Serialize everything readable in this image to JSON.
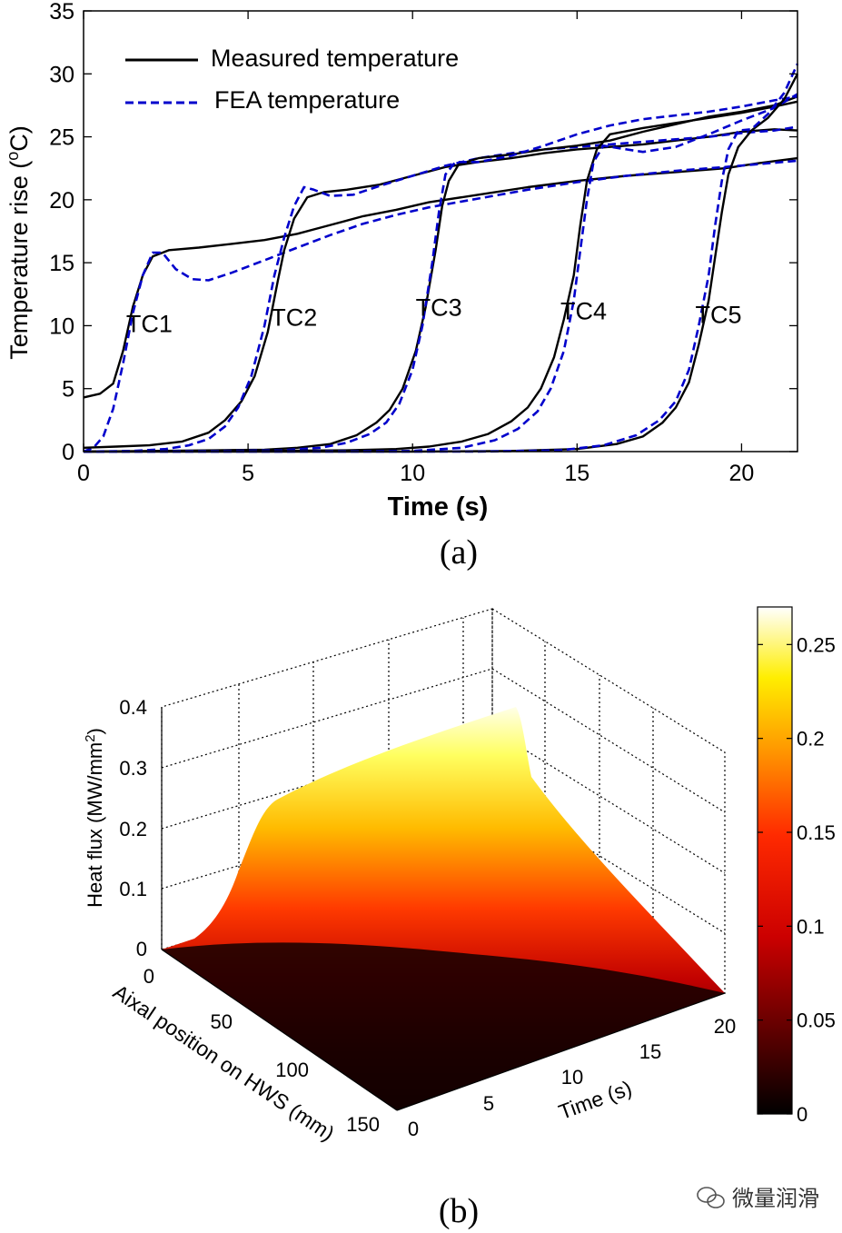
{
  "chart_data": [
    {
      "type": "line",
      "panel_label": "(a)",
      "xlabel": "Time (s)",
      "ylabel_main": "Temperature rise (",
      "ylabel_sup": "o",
      "ylabel_end": "C)",
      "xlim": [
        0,
        21.7
      ],
      "ylim": [
        0,
        35
      ],
      "xticks": [
        0,
        5,
        10,
        15,
        20
      ],
      "yticks": [
        0,
        5,
        10,
        15,
        20,
        25,
        30,
        35
      ],
      "legend": {
        "position": "top-left",
        "entries": [
          {
            "label": "Measured temperature",
            "color": "#000000",
            "style": "solid"
          },
          {
            "label": "FEA temperature",
            "color": "#0000cc",
            "style": "dashed"
          }
        ]
      },
      "annotations": [
        {
          "text": "TC1",
          "x": 2.0,
          "y": 9.5
        },
        {
          "text": "TC2",
          "x": 6.4,
          "y": 10.0
        },
        {
          "text": "TC3",
          "x": 10.8,
          "y": 10.8
        },
        {
          "text": "TC4",
          "x": 15.2,
          "y": 10.5
        },
        {
          "text": "TC5",
          "x": 19.3,
          "y": 10.2
        }
      ],
      "series": [
        {
          "label": "TC1",
          "kind": "measured",
          "points": [
            [
              0,
              4.3
            ],
            [
              0.5,
              4.6
            ],
            [
              0.9,
              5.4
            ],
            [
              1.2,
              8
            ],
            [
              1.5,
              11.5
            ],
            [
              1.8,
              14
            ],
            [
              2.1,
              15.5
            ],
            [
              2.6,
              16
            ],
            [
              3.5,
              16.2
            ],
            [
              4.5,
              16.5
            ],
            [
              5.5,
              16.8
            ],
            [
              6.5,
              17.3
            ],
            [
              7.5,
              18
            ],
            [
              8.5,
              18.7
            ],
            [
              9.5,
              19.2
            ],
            [
              10.5,
              19.8
            ],
            [
              12,
              20.4
            ],
            [
              13.5,
              21
            ],
            [
              15,
              21.5
            ],
            [
              16.5,
              21.9
            ],
            [
              18,
              22.2
            ],
            [
              19.5,
              22.5
            ],
            [
              20.5,
              22.9
            ],
            [
              21.7,
              23.3
            ]
          ]
        },
        {
          "label": "TC1",
          "kind": "fea",
          "points": [
            [
              0,
              0
            ],
            [
              0.3,
              0.3
            ],
            [
              0.6,
              1.2
            ],
            [
              0.9,
              3.4
            ],
            [
              1.2,
              7
            ],
            [
              1.5,
              11
            ],
            [
              1.8,
              14
            ],
            [
              2.1,
              15.8
            ],
            [
              2.4,
              15.8
            ],
            [
              2.8,
              14.5
            ],
            [
              3.3,
              13.7
            ],
            [
              3.8,
              13.6
            ],
            [
              4.5,
              14.2
            ],
            [
              5.5,
              15.2
            ],
            [
              6.5,
              16.2
            ],
            [
              7.5,
              17.2
            ],
            [
              8.5,
              18.1
            ],
            [
              9.5,
              18.8
            ],
            [
              10.5,
              19.4
            ],
            [
              12,
              20.1
            ],
            [
              13.5,
              20.8
            ],
            [
              15,
              21.4
            ],
            [
              16.5,
              21.9
            ],
            [
              18,
              22.3
            ],
            [
              19.5,
              22.6
            ],
            [
              21.7,
              23.1
            ]
          ]
        },
        {
          "label": "TC2",
          "kind": "measured",
          "points": [
            [
              0,
              0.3
            ],
            [
              1,
              0.4
            ],
            [
              2,
              0.5
            ],
            [
              3,
              0.8
            ],
            [
              3.8,
              1.5
            ],
            [
              4.3,
              2.5
            ],
            [
              4.8,
              4
            ],
            [
              5.2,
              6
            ],
            [
              5.6,
              9.5
            ],
            [
              5.9,
              13.5
            ],
            [
              6.1,
              16
            ],
            [
              6.4,
              18.5
            ],
            [
              6.8,
              20.2
            ],
            [
              7.3,
              20.6
            ],
            [
              8,
              20.8
            ],
            [
              9,
              21.2
            ],
            [
              10,
              21.9
            ],
            [
              11,
              22.6
            ],
            [
              12,
              23
            ],
            [
              13,
              23.3
            ],
            [
              14,
              23.7
            ],
            [
              15,
              24
            ],
            [
              16,
              24.2
            ],
            [
              17,
              24.4
            ],
            [
              18,
              24.7
            ],
            [
              19,
              25
            ],
            [
              20,
              25.4
            ],
            [
              21,
              25.6
            ],
            [
              21.7,
              25.5
            ]
          ]
        },
        {
          "label": "TC2",
          "kind": "fea",
          "points": [
            [
              0,
              0
            ],
            [
              1.5,
              0.05
            ],
            [
              2.5,
              0.2
            ],
            [
              3.2,
              0.5
            ],
            [
              3.8,
              1
            ],
            [
              4.3,
              2
            ],
            [
              4.7,
              3.5
            ],
            [
              5.1,
              6
            ],
            [
              5.5,
              10
            ],
            [
              5.8,
              14
            ],
            [
              6.1,
              17
            ],
            [
              6.4,
              19.5
            ],
            [
              6.7,
              21
            ],
            [
              7,
              20.8
            ],
            [
              7.5,
              20.3
            ],
            [
              8.2,
              20.4
            ],
            [
              9,
              21.1
            ],
            [
              10,
              21.9
            ],
            [
              11,
              22.7
            ],
            [
              12,
              23.3
            ],
            [
              13,
              23.7
            ],
            [
              14,
              24
            ],
            [
              15,
              24.2
            ],
            [
              16,
              24.4
            ],
            [
              17,
              24.6
            ],
            [
              18,
              24.8
            ],
            [
              19,
              25
            ],
            [
              20,
              25.3
            ],
            [
              21,
              25.5
            ],
            [
              21.7,
              25.8
            ]
          ]
        },
        {
          "label": "TC3",
          "kind": "measured",
          "points": [
            [
              0,
              0
            ],
            [
              2,
              0.05
            ],
            [
              4,
              0.1
            ],
            [
              5.5,
              0.15
            ],
            [
              6.5,
              0.3
            ],
            [
              7.5,
              0.6
            ],
            [
              8.3,
              1.3
            ],
            [
              8.9,
              2.3
            ],
            [
              9.3,
              3.3
            ],
            [
              9.7,
              5
            ],
            [
              10.1,
              8
            ],
            [
              10.4,
              11.5
            ],
            [
              10.7,
              16
            ],
            [
              10.9,
              19.5
            ],
            [
              11.1,
              21.5
            ],
            [
              11.4,
              22.8
            ],
            [
              12,
              23.3
            ],
            [
              13,
              23.6
            ],
            [
              14,
              24
            ],
            [
              15,
              24.3
            ],
            [
              16,
              24.7
            ],
            [
              17,
              25.4
            ],
            [
              18,
              26
            ],
            [
              19,
              26.6
            ],
            [
              20,
              27
            ],
            [
              21,
              27.5
            ],
            [
              21.7,
              28.2
            ]
          ]
        },
        {
          "label": "TC3",
          "kind": "fea",
          "points": [
            [
              0,
              0
            ],
            [
              4,
              0.05
            ],
            [
              6,
              0.1
            ],
            [
              7.2,
              0.3
            ],
            [
              8,
              0.7
            ],
            [
              8.7,
              1.4
            ],
            [
              9.2,
              2.3
            ],
            [
              9.6,
              3.8
            ],
            [
              10,
              6.5
            ],
            [
              10.3,
              10
            ],
            [
              10.6,
              15
            ],
            [
              10.8,
              19
            ],
            [
              11,
              22
            ],
            [
              11.3,
              23
            ],
            [
              12,
              23
            ],
            [
              13,
              23.5
            ],
            [
              14,
              24.3
            ],
            [
              15,
              25.2
            ],
            [
              16,
              25.9
            ],
            [
              17,
              26.4
            ],
            [
              18,
              26.7
            ],
            [
              19,
              27
            ],
            [
              20,
              27.4
            ],
            [
              21,
              27.9
            ],
            [
              21.7,
              28.2
            ]
          ]
        },
        {
          "label": "TC4",
          "kind": "measured",
          "points": [
            [
              0,
              0
            ],
            [
              5,
              0.05
            ],
            [
              8,
              0.1
            ],
            [
              9.5,
              0.2
            ],
            [
              10.5,
              0.4
            ],
            [
              11.5,
              0.8
            ],
            [
              12.3,
              1.4
            ],
            [
              13,
              2.4
            ],
            [
              13.5,
              3.5
            ],
            [
              13.9,
              5
            ],
            [
              14.3,
              7.5
            ],
            [
              14.6,
              10.5
            ],
            [
              14.9,
              14
            ],
            [
              15.1,
              18
            ],
            [
              15.3,
              21.5
            ],
            [
              15.6,
              24
            ],
            [
              16,
              25.2
            ],
            [
              17,
              25.7
            ],
            [
              18,
              26.1
            ],
            [
              19,
              26.5
            ],
            [
              20,
              26.9
            ],
            [
              21,
              27.4
            ],
            [
              21.7,
              27.8
            ]
          ]
        },
        {
          "label": "TC4",
          "kind": "fea",
          "points": [
            [
              0,
              0
            ],
            [
              8,
              0.02
            ],
            [
              10,
              0.05
            ],
            [
              11.5,
              0.3
            ],
            [
              12.5,
              0.9
            ],
            [
              13.2,
              1.8
            ],
            [
              13.8,
              3.2
            ],
            [
              14.2,
              5
            ],
            [
              14.6,
              8
            ],
            [
              14.9,
              12
            ],
            [
              15.1,
              16
            ],
            [
              15.3,
              20
            ],
            [
              15.5,
              23
            ],
            [
              15.8,
              24.3
            ],
            [
              16.5,
              24
            ],
            [
              17,
              23.8
            ],
            [
              18,
              24.2
            ],
            [
              19,
              25.2
            ],
            [
              20,
              26.3
            ],
            [
              21,
              27.3
            ],
            [
              21.7,
              28.4
            ]
          ]
        },
        {
          "label": "TC5",
          "kind": "measured",
          "points": [
            [
              0,
              0
            ],
            [
              10,
              0
            ],
            [
              13,
              0.05
            ],
            [
              15,
              0.2
            ],
            [
              16.2,
              0.6
            ],
            [
              17,
              1.2
            ],
            [
              17.6,
              2.3
            ],
            [
              18,
              3.5
            ],
            [
              18.4,
              5.5
            ],
            [
              18.7,
              8.5
            ],
            [
              19,
              12
            ],
            [
              19.2,
              15.5
            ],
            [
              19.4,
              19
            ],
            [
              19.6,
              22
            ],
            [
              19.9,
              24.2
            ],
            [
              20.3,
              25.5
            ],
            [
              20.8,
              26.5
            ],
            [
              21.3,
              28
            ],
            [
              21.7,
              30
            ]
          ]
        },
        {
          "label": "TC5",
          "kind": "fea",
          "points": [
            [
              0,
              0
            ],
            [
              12,
              0
            ],
            [
              14.5,
              0.1
            ],
            [
              15.8,
              0.5
            ],
            [
              16.8,
              1.3
            ],
            [
              17.5,
              2.5
            ],
            [
              18,
              4
            ],
            [
              18.4,
              6.5
            ],
            [
              18.7,
              10
            ],
            [
              19,
              14
            ],
            [
              19.2,
              18
            ],
            [
              19.4,
              21.5
            ],
            [
              19.6,
              24
            ],
            [
              19.9,
              25.5
            ],
            [
              20.3,
              25.6
            ],
            [
              20.8,
              26.8
            ],
            [
              21.3,
              28.5
            ],
            [
              21.7,
              30.8
            ]
          ]
        }
      ]
    },
    {
      "type": "surface",
      "panel_label": "(b)",
      "xlabel": "Time (s)",
      "ylabel": "Aixal position on HWS (mm)",
      "zlabel_main": "Heat flux (MW/mm",
      "zlabel_sup": "2",
      "zlabel_end": ")",
      "xlim": [
        0,
        22
      ],
      "ylim": [
        0,
        160
      ],
      "zlim": [
        0,
        0.4
      ],
      "xticks": [
        0,
        5,
        10,
        15,
        20
      ],
      "yticks": [
        0,
        50,
        100,
        150
      ],
      "zticks": [
        0,
        0.1,
        0.2,
        0.3,
        0.4
      ],
      "colormap": "hot",
      "colorbar": {
        "range": [
          0,
          0.27
        ],
        "ticks": [
          0,
          0.05,
          0.1,
          0.15,
          0.2,
          0.25
        ],
        "tick_labels": [
          "0",
          "0.05",
          "0.1",
          "0.15",
          "0.2",
          "0.25"
        ],
        "position": "right"
      },
      "grid": true,
      "ridge_peak": {
        "axial_position_start": 0,
        "value_start": 0.25,
        "value_end": 0.4
      }
    }
  ],
  "watermark": {
    "text": "微量润滑"
  }
}
